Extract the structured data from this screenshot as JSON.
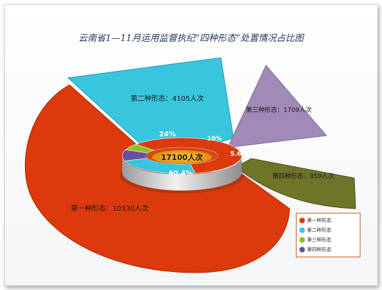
{
  "title": "云南省1—11月运用监督执纪“四种形态”处置情况占比图",
  "center_label": "17100人次",
  "colors": {
    "first": "#dc3a0c",
    "second": "#38c6de",
    "third": "#a08ab8",
    "fourth": "#6e7428",
    "third_inner": "#8fbf1e",
    "fourth_inner": "#6a4ea0",
    "legend_border": "#d06020"
  },
  "chart_data": {
    "type": "pie",
    "title": "云南省1—11月运用监督执纪“四种形态”处置情况占比图",
    "total": "17100人次",
    "slices": [
      {
        "name": "第一种形态",
        "value": 10330,
        "label": "第一种形态：10330人次",
        "percent_label": "60.4%"
      },
      {
        "name": "第二种形态",
        "value": 4105,
        "label": "第二种形态：4105人次",
        "percent_label": "24%"
      },
      {
        "name": "第三种形态",
        "value": 1709,
        "label": "第三种形态：1709人次",
        "percent_label": "10%"
      },
      {
        "name": "第四种形态",
        "value": 959,
        "label": "第四种形态：959人次",
        "percent_label": "5.6%"
      }
    ],
    "legend": [
      "第一种形态",
      "第二种形态",
      "第三种形态",
      "第四种形态"
    ],
    "legend_position": "bottom-right"
  }
}
